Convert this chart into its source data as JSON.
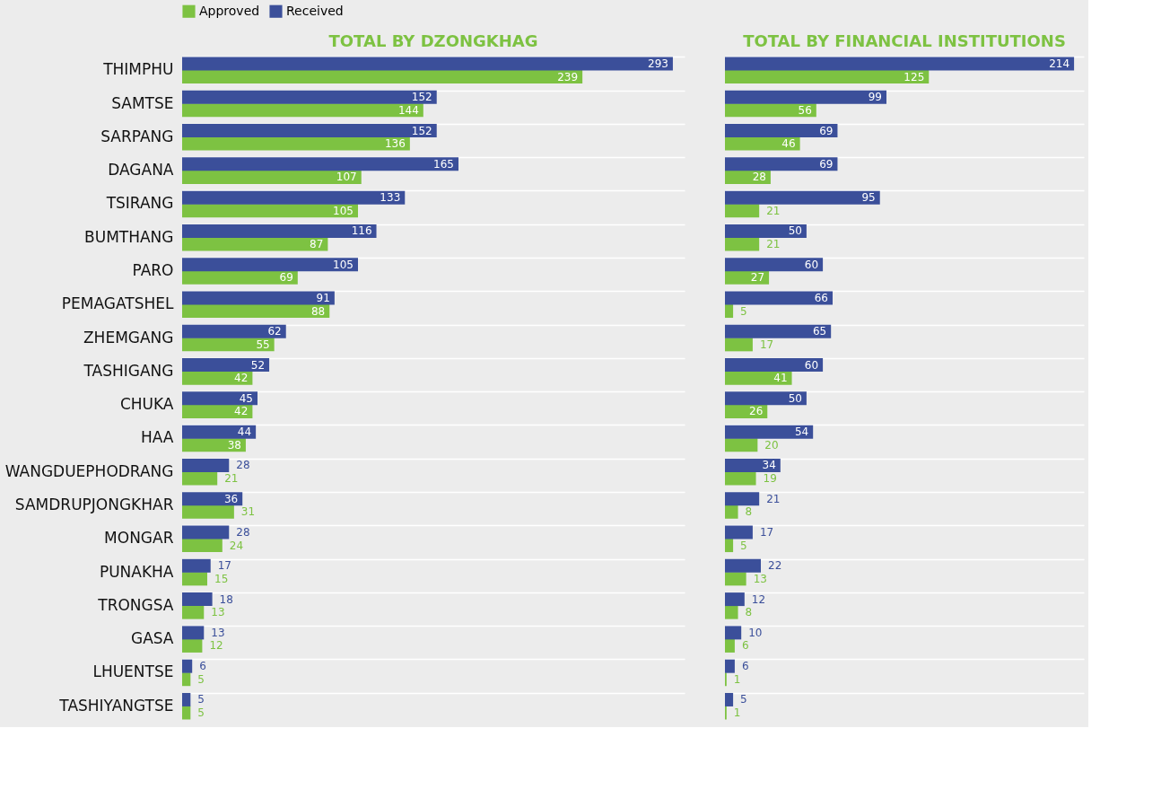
{
  "chart_data": [
    {
      "type": "bar",
      "orientation": "horizontal",
      "title": "TOTAL BY DZONGKHAG",
      "categories": [
        "THIMPHU",
        "SAMTSE",
        "SARPANG",
        "DAGANA",
        "TSIRANG",
        "BUMTHANG",
        "PARO",
        "PEMAGATSHEL",
        "ZHEMGANG",
        "TASHIGANG",
        "CHUKA",
        "HAA",
        "WANGDUEPHODRANG",
        "SAMDRUPJONGKHAR",
        "MONGAR",
        "PUNAKHA",
        "TRONGSA",
        "GASA",
        "LHUENTSE",
        "TASHIYANGTSE"
      ],
      "series": [
        {
          "name": "Approved",
          "color": "#7dc242",
          "values": [
            239,
            144,
            136,
            107,
            105,
            87,
            69,
            88,
            55,
            42,
            42,
            38,
            21,
            31,
            24,
            15,
            13,
            12,
            5,
            5
          ]
        },
        {
          "name": "Received",
          "color": "#3b4f9a",
          "values": [
            293,
            152,
            152,
            165,
            133,
            116,
            105,
            91,
            62,
            52,
            45,
            44,
            28,
            36,
            28,
            17,
            18,
            13,
            6,
            5
          ]
        }
      ],
      "data_labels": true,
      "legend": "top",
      "grid": "y",
      "tick_labels": "y"
    },
    {
      "type": "bar",
      "orientation": "horizontal",
      "title": "TOTAL BY FINANCIAL INSTITUTIONS",
      "categories": [
        "THIMPHU",
        "SAMTSE",
        "SARPANG",
        "DAGANA",
        "TSIRANG",
        "BUMTHANG",
        "PARO",
        "PEMAGATSHEL",
        "ZHEMGANG",
        "TASHIGANG",
        "CHUKA",
        "HAA",
        "WANGDUEPHODRANG",
        "SAMDRUPJONGKHAR",
        "MONGAR",
        "PUNAKHA",
        "TRONGSA",
        "GASA",
        "LHUENTSE",
        "TASHIYANGTSE"
      ],
      "series": [
        {
          "name": "Approved",
          "color": "#7dc242",
          "values": [
            125,
            56,
            46,
            28,
            21,
            21,
            27,
            5,
            17,
            41,
            26,
            20,
            19,
            8,
            5,
            13,
            8,
            6,
            1,
            1
          ]
        },
        {
          "name": "Received",
          "color": "#3b4f9a",
          "values": [
            214,
            99,
            69,
            69,
            95,
            50,
            60,
            66,
            65,
            60,
            50,
            54,
            34,
            21,
            17,
            22,
            12,
            10,
            6,
            5
          ]
        }
      ],
      "data_labels": true,
      "grid": "y",
      "tick_labels": false
    }
  ]
}
